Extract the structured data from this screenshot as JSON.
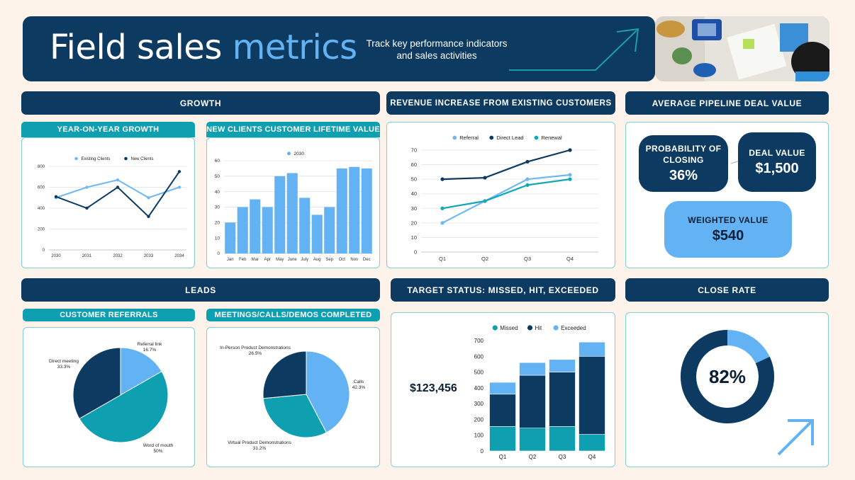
{
  "header": {
    "title_part1": "Field sales",
    "title_part2": "metrics",
    "subtitle": "Track key performance indicators and sales activities"
  },
  "sections": {
    "growth": "GROWTH",
    "revenue": "REVENUE INCREASE FROM EXISTING CUSTOMERS",
    "pipeline": "AVERAGE PIPELINE DEAL VALUE",
    "leads": "LEADS",
    "target": "TARGET STATUS: MISSED, HIT, EXCEEDED",
    "close": "CLOSE RATE"
  },
  "subsections": {
    "yoy": "YEAR-ON-YEAR GROWTH",
    "clv": "NEW CLIENTS CUSTOMER LIFETIME VALUE",
    "referrals": "CUSTOMER REFERRALS",
    "meetings": "MEETINGS/CALLS/DEMOS COMPLETED"
  },
  "pipeline": {
    "probability_label": "PROBABILITY OF CLOSING",
    "probability_value": "36%",
    "deal_label": "DEAL VALUE",
    "deal_value": "$1,500",
    "weighted_label": "WEIGHTED VALUE",
    "weighted_value": "$540"
  },
  "target_total": "$123,456",
  "colors": {
    "navy": "#0d3a61",
    "light_blue": "#63b3f4",
    "teal": "#0ea0b0",
    "background": "#fdf3ea"
  },
  "chart_data": [
    {
      "id": "yoy",
      "type": "line",
      "categories": [
        "2030",
        "2031",
        "2032",
        "2033",
        "2034"
      ],
      "series": [
        {
          "name": "Existing Clients",
          "color": "#6fb8f3",
          "values": [
            500,
            600,
            670,
            500,
            600
          ]
        },
        {
          "name": "New Clients",
          "color": "#0d3a61",
          "values": [
            510,
            400,
            600,
            320,
            750
          ]
        }
      ],
      "ylim": [
        0,
        800
      ],
      "yticks": [
        0,
        200,
        400,
        600,
        800
      ],
      "legend": "top",
      "grid": true
    },
    {
      "id": "clv",
      "type": "bar",
      "categories": [
        "Jan",
        "Feb",
        "Mar",
        "Apr",
        "May",
        "June",
        "July",
        "Aug",
        "Sep",
        "Oct",
        "Nov",
        "Dec"
      ],
      "series": [
        {
          "name": "2030",
          "color": "#63b3f4",
          "values": [
            20,
            30,
            35,
            30,
            50,
            52,
            36,
            25,
            30,
            55,
            56,
            55
          ]
        }
      ],
      "ylim": [
        0,
        60
      ],
      "yticks": [
        0,
        10,
        20,
        30,
        40,
        50,
        60
      ],
      "legend": "top",
      "grid": true
    },
    {
      "id": "revenue",
      "type": "line",
      "categories": [
        "Q1",
        "Q2",
        "Q3",
        "Q4"
      ],
      "series": [
        {
          "name": "Referral",
          "color": "#6fb8f3",
          "values": [
            20,
            35,
            50,
            53
          ]
        },
        {
          "name": "Direct Lead",
          "color": "#0d3a61",
          "values": [
            50,
            51,
            62,
            70
          ]
        },
        {
          "name": "Renewal",
          "color": "#12a7b4",
          "values": [
            30,
            35,
            46,
            50
          ]
        }
      ],
      "ylim": [
        0,
        70
      ],
      "yticks": [
        0,
        10,
        20,
        30,
        40,
        50,
        60,
        70
      ],
      "legend": "top",
      "grid": true
    },
    {
      "id": "referrals",
      "type": "pie",
      "slices": [
        {
          "label": "Referral link",
          "pct_label": "16.7%",
          "value": 16.7,
          "color": "#63b3f4"
        },
        {
          "label": "Word of mouth",
          "pct_label": "50%",
          "value": 50,
          "color": "#0ea0b0"
        },
        {
          "label": "Direct meeting",
          "pct_label": "33.3%",
          "value": 33.3,
          "color": "#0d3a61"
        }
      ]
    },
    {
      "id": "meetings",
      "type": "pie",
      "slices": [
        {
          "label": "Calls",
          "pct_label": "42.3%",
          "value": 42.3,
          "color": "#63b3f4"
        },
        {
          "label": "Virtual Product Demonstrations",
          "pct_label": "31.2%",
          "value": 31.2,
          "color": "#0ea0b0"
        },
        {
          "label": "In-Person Product Demonstrations",
          "pct_label": "26.5%",
          "value": 26.5,
          "color": "#0d3a61"
        }
      ]
    },
    {
      "id": "target",
      "type": "bar",
      "stacked": true,
      "categories": [
        "Q1",
        "Q2",
        "Q3",
        "Q4"
      ],
      "series": [
        {
          "name": "Missed",
          "color": "#0ea0b0",
          "values": [
            155,
            145,
            155,
            105
          ]
        },
        {
          "name": "Hit",
          "color": "#0d3a61",
          "values": [
            205,
            335,
            345,
            495
          ]
        },
        {
          "name": "Exceeded",
          "color": "#63b3f4",
          "values": [
            75,
            80,
            80,
            90
          ]
        }
      ],
      "ylim": [
        0,
        700
      ],
      "yticks": [
        0,
        100,
        200,
        300,
        400,
        500,
        600,
        700
      ],
      "legend": "top"
    },
    {
      "id": "close",
      "type": "pie",
      "value": 82,
      "value_label": "82%",
      "colors": [
        "#0d3a61",
        "#63b3f4"
      ]
    }
  ]
}
